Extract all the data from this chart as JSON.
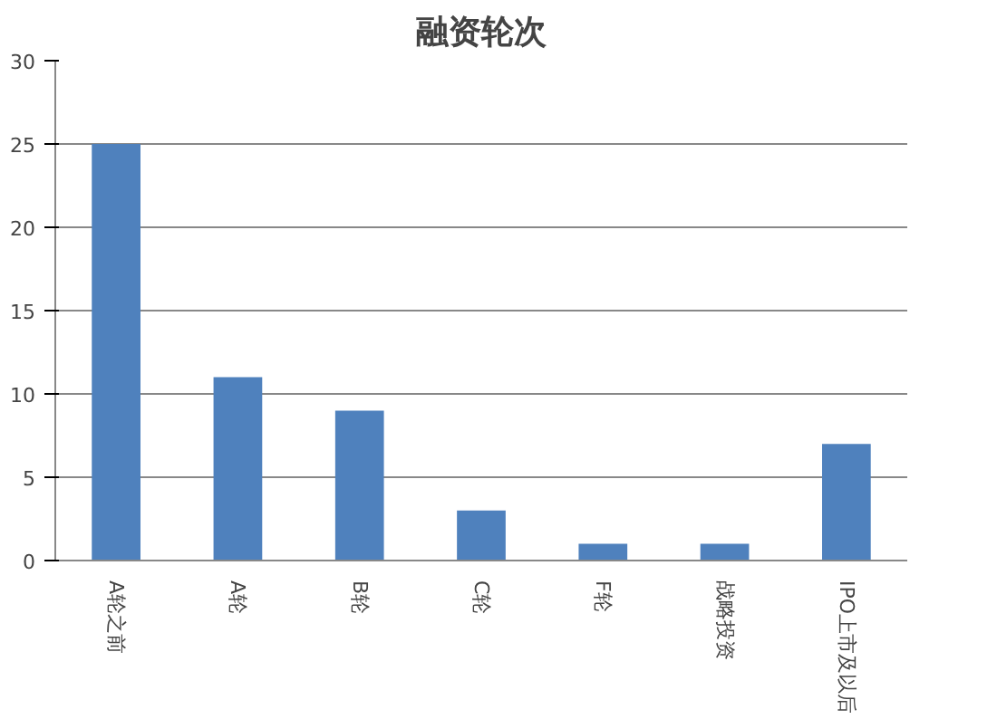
{
  "chart_data": {
    "type": "bar",
    "title": "融资轮次",
    "categories": [
      "A轮之前",
      "A轮",
      "B轮",
      "C轮",
      "F轮",
      "战略投资",
      "IPO上市及以后"
    ],
    "values": [
      25,
      11,
      9,
      3,
      1,
      1,
      7
    ],
    "color": "#4f81bd",
    "ylim": [
      0,
      30
    ],
    "yticks": [
      0,
      5,
      10,
      15,
      20,
      25,
      30
    ],
    "grid": "y"
  }
}
